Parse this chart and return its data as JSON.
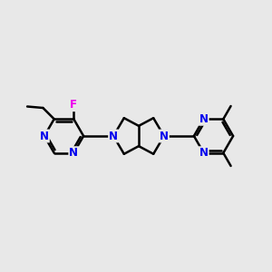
{
  "background_color": "#e8e8e8",
  "bond_color": "#000000",
  "N_color": "#0000ee",
  "F_color": "#ee00ee",
  "bond_width": 1.8,
  "font_size_atom": 8.5,
  "figsize": [
    3.0,
    3.0
  ],
  "dpi": 100,
  "xlim": [
    0,
    10
  ],
  "ylim": [
    2.5,
    7.5
  ]
}
